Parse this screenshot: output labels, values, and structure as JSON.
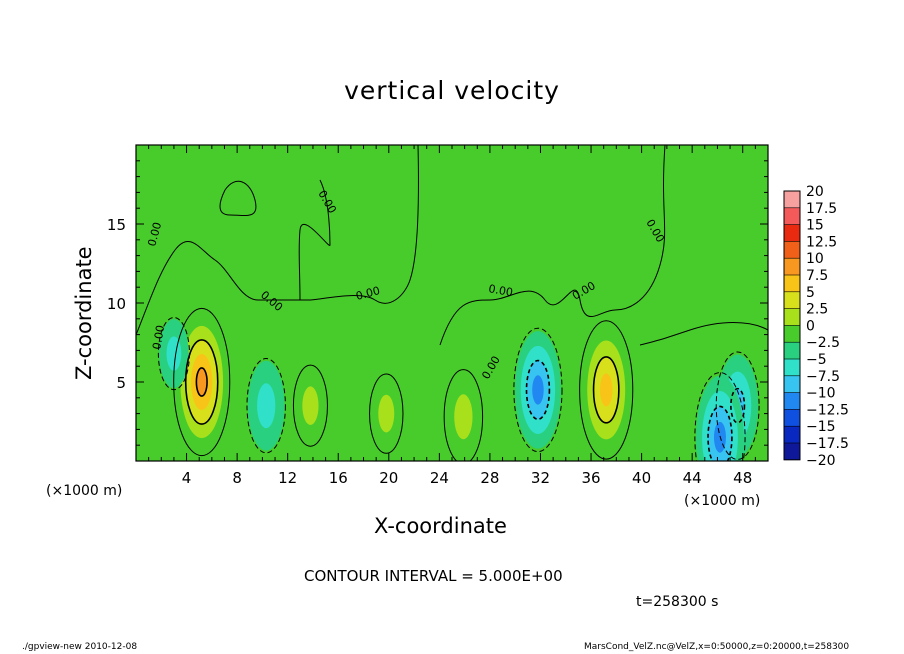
{
  "chart_data": {
    "type": "heatmap",
    "title": "vertical velocity",
    "xlabel": "X-coordinate",
    "ylabel": "Z-coordinate",
    "x_unit_label": "(×1000 m)",
    "xlim": [
      0,
      50
    ],
    "ylim": [
      0,
      20
    ],
    "x_ticks": [
      "4",
      "8",
      "12",
      "16",
      "20",
      "24",
      "28",
      "32",
      "36",
      "40",
      "44",
      "48"
    ],
    "x_tick_values": [
      4,
      8,
      12,
      16,
      20,
      24,
      28,
      32,
      36,
      40,
      44,
      48
    ],
    "y_ticks": [
      "5",
      "10",
      "15"
    ],
    "y_tick_values": [
      5,
      10,
      15
    ],
    "colorbar": {
      "labels": [
        "20",
        "17.5",
        "15",
        "12.5",
        "10",
        "7.5",
        "5",
        "2.5",
        "0",
        "−2.5",
        "−5",
        "−7.5",
        "−10",
        "−12.5",
        "−15",
        "−17.5",
        "−20"
      ],
      "colors": [
        "#f7a0a0",
        "#f45a5a",
        "#ea2a10",
        "#f06018",
        "#f89820",
        "#f8c418",
        "#d8e01c",
        "#a8e01c",
        "#48cc2c",
        "#28d080",
        "#30e0c8",
        "#38c4f0",
        "#2088f0",
        "#1050e0",
        "#0828c0",
        "#10189a",
        "#6018a8"
      ]
    },
    "features": [
      {
        "x": 5.2,
        "z": 5.0,
        "w": 10.5
      },
      {
        "x": 37.2,
        "z": 4.5,
        "w": 9.5
      },
      {
        "x": 25.9,
        "z": 2.8,
        "w": 4.5
      },
      {
        "x": 13.8,
        "z": 3.5,
        "w": 3.0
      },
      {
        "x": 19.8,
        "z": 3.0,
        "w": 2.8
      },
      {
        "x": 31.8,
        "z": 4.5,
        "w": -7.8
      },
      {
        "x": 10.3,
        "z": 3.5,
        "w": -4.5
      },
      {
        "x": 47.6,
        "z": 3.5,
        "w": -6.0
      },
      {
        "x": 46.2,
        "z": 1.5,
        "w": -8.5
      },
      {
        "x": 3.0,
        "z": 6.8,
        "w": -2.0
      }
    ],
    "contour_line_labels": [
      "0.00",
      "0.00",
      "0.00",
      "0.00",
      "0.00",
      "0.00",
      "0.00",
      "0.00",
      "0.00"
    ],
    "contour_interval_text": "CONTOUR INTERVAL = 5.000E+00",
    "time_text": "t=258300 s"
  },
  "footer": {
    "left": "./gpview-new   2010-12-08",
    "right": "MarsCond_VelZ.nc@VelZ,x=0:50000,z=0:20000,t=258300"
  }
}
